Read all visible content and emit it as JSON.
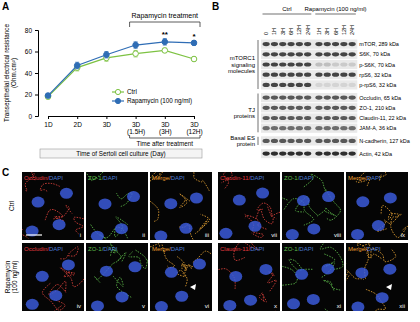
{
  "chart_data": {
    "type": "line",
    "panel": "A",
    "title": "Rapamycin treatment",
    "x_label": "Time of Sertoli cell culture (Day)",
    "x_sublabel": "Time after treatment",
    "treatment_range": [
      "3D (1.5H)",
      "3D (12H)"
    ],
    "y_label": "Transepithelial electrical resistance (Ohm.cm²)",
    "categories": [
      "1D",
      "2D",
      "3D",
      "3D (1.5H)",
      "3D (3H)",
      "3D (12H)"
    ],
    "series": [
      {
        "name": "Ctrl",
        "color": "#7dc242",
        "marker": "open-circle",
        "values": [
          18,
          45,
          54,
          58,
          61,
          53
        ],
        "errors": [
          2,
          3,
          3,
          3,
          2,
          2
        ]
      },
      {
        "name": "Rapamycin (100 ng/ml)",
        "color": "#2f6db5",
        "marker": "circle",
        "values": [
          19,
          47,
          57,
          66,
          69,
          68
        ],
        "errors": [
          2,
          3,
          3,
          3,
          3,
          2
        ]
      }
    ],
    "annotations": [
      {
        "text": "**",
        "x": "3D (3H)"
      },
      {
        "text": "*",
        "x": "3D (12H)"
      }
    ],
    "ylim": [
      0,
      80
    ],
    "yticks": [
      0,
      20,
      40,
      60,
      80
    ],
    "legend": "lower right"
  },
  "western_blot": {
    "panel": "B",
    "groups": [
      {
        "label": "Ctrl",
        "lanes": [
          "0",
          "1H",
          "3H",
          "6H",
          "12H",
          "24H"
        ]
      },
      {
        "label": "Rapamycin (100 ng/ml)",
        "lanes": [
          "1H",
          "3H",
          "6H",
          "12H",
          "24H"
        ]
      }
    ],
    "sections": [
      {
        "label": "mTORC1 signaling molecules",
        "rows": [
          {
            "protein": "mTOR, 289 kDa",
            "intensity": [
              0.8,
              0.8,
              0.8,
              0.8,
              0.8,
              0.8,
              0.8,
              0.8,
              0.8,
              0.8,
              0.8
            ]
          },
          {
            "protein": "S6K, 70 kDa",
            "intensity": [
              0.8,
              0.8,
              0.8,
              0.8,
              0.8,
              0.8,
              0.8,
              0.8,
              0.8,
              0.8,
              0.8
            ]
          },
          {
            "protein": "p-S6K, 70 kDa",
            "intensity": [
              0.8,
              0.8,
              0.8,
              0.8,
              0.8,
              0.8,
              0.2,
              0.2,
              0.15,
              0.15,
              0.15
            ]
          },
          {
            "protein": "rpS6, 32 kDa",
            "intensity": [
              0.8,
              0.8,
              0.8,
              0.8,
              0.8,
              0.8,
              0.8,
              0.8,
              0.8,
              0.8,
              0.8
            ]
          },
          {
            "protein": "p-rpS6, 32 kDa",
            "intensity": [
              0.8,
              0.8,
              0.8,
              0.8,
              0.8,
              0.8,
              0.1,
              0.1,
              0.1,
              0.1,
              0.1
            ]
          }
        ]
      },
      {
        "label": "TJ proteins",
        "rows": [
          {
            "protein": "Occludin, 65 kDa",
            "intensity": [
              0.7,
              0.7,
              0.7,
              0.7,
              0.7,
              0.7,
              0.7,
              0.7,
              0.7,
              0.7,
              0.7
            ]
          },
          {
            "protein": "ZO-1, 210 kDa",
            "intensity": [
              0.7,
              0.7,
              0.7,
              0.7,
              0.7,
              0.7,
              0.7,
              0.7,
              0.7,
              0.7,
              0.7
            ]
          },
          {
            "protein": "Claudin-11, 22 kDa",
            "intensity": [
              0.7,
              0.7,
              0.7,
              0.7,
              0.7,
              0.7,
              0.7,
              0.7,
              0.7,
              0.7,
              0.7
            ]
          },
          {
            "protein": "JAM-A, 36 kDa",
            "intensity": [
              0.6,
              0.6,
              0.6,
              0.6,
              0.6,
              0.6,
              0.6,
              0.6,
              0.6,
              0.6,
              0.6
            ]
          }
        ]
      },
      {
        "label": "Basal ES protein",
        "rows": [
          {
            "protein": "N-cadherin, 127 kDa",
            "intensity": [
              0.7,
              0.7,
              0.7,
              0.7,
              0.7,
              0.7,
              0.7,
              0.7,
              0.7,
              0.7,
              0.7
            ]
          }
        ]
      },
      {
        "label": null,
        "rows": [
          {
            "protein": "Actin, 42 kDa",
            "intensity": [
              0.9,
              0.9,
              0.9,
              0.9,
              0.9,
              0.9,
              0.9,
              0.9,
              0.9,
              0.9,
              0.9
            ]
          }
        ]
      }
    ]
  },
  "immunofluorescence": {
    "panel": "C",
    "rows": [
      "Ctrl",
      "Rapamycin (100 ng/ml)"
    ],
    "sets": [
      {
        "columns": [
          {
            "color": "#d8413b",
            "parts": [
              {
                "text": "Occludin/",
                "color": "#e0393e"
              },
              {
                "text": "DAPI",
                "color": "#4a7bd6"
              }
            ]
          },
          {
            "color": "#5dbb4a",
            "parts": [
              {
                "text": "ZO-1/",
                "color": "#5dbb4a"
              },
              {
                "text": "DAPI",
                "color": "#4a7bd6"
              }
            ]
          },
          {
            "color": "#e3a032",
            "parts": [
              {
                "text": "Merge/",
                "color": "#f0a030"
              },
              {
                "text": "DAPI",
                "color": "#4a7bd6"
              }
            ]
          }
        ],
        "numerals": [
          [
            "i",
            "ii",
            "iii"
          ],
          [
            "iv",
            "v",
            "vi"
          ]
        ]
      },
      {
        "columns": [
          {
            "color": "#d8413b",
            "parts": [
              {
                "text": "Claudin-11/",
                "color": "#e0393e"
              },
              {
                "text": "DAPI",
                "color": "#4a7bd6"
              }
            ]
          },
          {
            "color": "#5dbb4a",
            "parts": [
              {
                "text": "ZO-1/",
                "color": "#5dbb4a"
              },
              {
                "text": "DAPI",
                "color": "#4a7bd6"
              }
            ]
          },
          {
            "color": "#e3a032",
            "parts": [
              {
                "text": "Merge/",
                "color": "#f0a030"
              },
              {
                "text": "DAPI",
                "color": "#4a7bd6"
              }
            ]
          }
        ],
        "numerals": [
          [
            "vii",
            "viii",
            "ix"
          ],
          [
            "x",
            "xi",
            "xii"
          ]
        ]
      }
    ]
  }
}
